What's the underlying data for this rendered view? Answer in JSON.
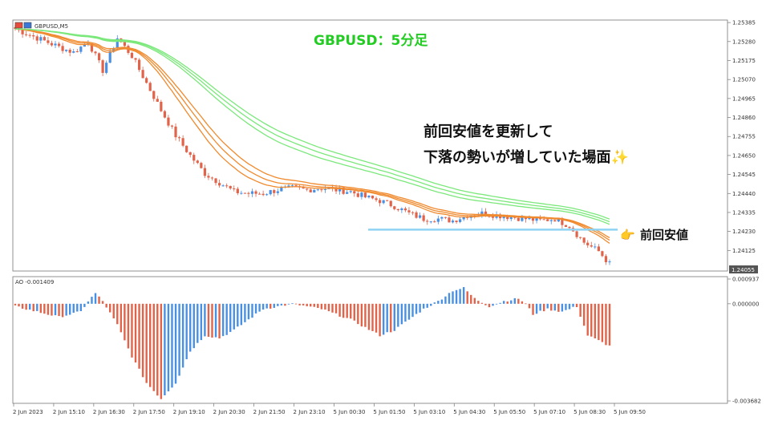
{
  "window": {
    "symbol_label": "GBPUSD,M5"
  },
  "overlay": {
    "title": "GBPUSD：5分足",
    "annotation_line1": "前回安値を更新して",
    "annotation_line2": "下落の勢いが増していた場面✨",
    "support_label": "前回安値",
    "pointer_glyph": "👉"
  },
  "colors": {
    "bull": "#4a90e2",
    "bear": "#e0634a",
    "ema_fast": "#f08a2e",
    "ema_slow": "#7be87b",
    "support_line": "#8fd3f4",
    "title": "#22cc22"
  },
  "chart_data": [
    {
      "type": "candlestick",
      "title": "GBPUSD,M5",
      "indicators": [
        "fast moving averages (orange)",
        "slow moving averages (green)"
      ],
      "y_ticks": [
        "1.25385",
        "1.25280",
        "1.25175",
        "1.25070",
        "1.24965",
        "1.24860",
        "1.24755",
        "1.24650",
        "1.24545",
        "1.24440",
        "1.24335",
        "1.24230",
        "1.24125"
      ],
      "last_price_label": "1.24055",
      "ylim": [
        1.2402,
        1.2539
      ],
      "x_ticks": [
        "2 Jun 2023",
        "2 Jun 15:10",
        "2 Jun 16:30",
        "2 Jun 17:50",
        "2 Jun 19:10",
        "2 Jun 20:30",
        "2 Jun 21:50",
        "2 Jun 23:10",
        "5 Jun 00:30",
        "5 Jun 01:50",
        "5 Jun 03:10",
        "5 Jun 04:30",
        "5 Jun 05:50",
        "5 Jun 07:10",
        "5 Jun 08:30",
        "5 Jun 09:50"
      ],
      "close_path": [
        [
          0,
          1.2535
        ],
        [
          6,
          1.253
        ],
        [
          12,
          1.2525
        ],
        [
          16,
          1.2522
        ],
        [
          20,
          1.2528
        ],
        [
          24,
          1.2512
        ],
        [
          28,
          1.253
        ],
        [
          32,
          1.252
        ],
        [
          36,
          1.2505
        ],
        [
          40,
          1.249
        ],
        [
          44,
          1.2476
        ],
        [
          48,
          1.2465
        ],
        [
          52,
          1.2455
        ],
        [
          56,
          1.245
        ],
        [
          60,
          1.2445
        ],
        [
          64,
          1.2444
        ],
        [
          68,
          1.2444
        ],
        [
          72,
          1.2446
        ],
        [
          76,
          1.2447
        ],
        [
          80,
          1.2446
        ],
        [
          84,
          1.2447
        ],
        [
          88,
          1.2446
        ],
        [
          92,
          1.2445
        ],
        [
          96,
          1.2442
        ],
        [
          100,
          1.244
        ],
        [
          104,
          1.2437
        ],
        [
          108,
          1.2433
        ],
        [
          112,
          1.243
        ],
        [
          116,
          1.243
        ],
        [
          120,
          1.2429
        ],
        [
          124,
          1.2432
        ],
        [
          128,
          1.2433
        ],
        [
          132,
          1.2432
        ],
        [
          136,
          1.2431
        ],
        [
          140,
          1.243
        ],
        [
          144,
          1.2429
        ],
        [
          148,
          1.243
        ],
        [
          152,
          1.2426
        ],
        [
          156,
          1.2417
        ],
        [
          160,
          1.2412
        ],
        [
          163,
          1.2405
        ]
      ],
      "support_level": 1.2424
    },
    {
      "type": "bar",
      "title": "AO -0.001409",
      "y_ticks": [
        "0.000937",
        "0.000000",
        "-0.003682"
      ],
      "ylim": [
        -0.003682,
        0.000937
      ],
      "colors_meaning": "blue = rising bar, red = falling bar",
      "values_path": [
        [
          0,
          -0.0001
        ],
        [
          6,
          -0.0003
        ],
        [
          12,
          -0.0005
        ],
        [
          18,
          -0.0003
        ],
        [
          20,
          0.0001
        ],
        [
          22,
          0.0004
        ],
        [
          24,
          0.0001
        ],
        [
          28,
          -0.0008
        ],
        [
          32,
          -0.002
        ],
        [
          36,
          -0.003
        ],
        [
          40,
          -0.0036
        ],
        [
          44,
          -0.003
        ],
        [
          48,
          -0.0018
        ],
        [
          52,
          -0.0012
        ],
        [
          56,
          -0.0013
        ],
        [
          60,
          -0.001
        ],
        [
          64,
          -0.0006
        ],
        [
          68,
          -0.0002
        ],
        [
          72,
          -0.0001
        ],
        [
          76,
          0.0
        ],
        [
          80,
          -0.0001
        ],
        [
          84,
          -0.0002
        ],
        [
          88,
          -0.0004
        ],
        [
          92,
          -0.0006
        ],
        [
          96,
          -0.0009
        ],
        [
          100,
          -0.0012
        ],
        [
          104,
          -0.001
        ],
        [
          108,
          -0.0006
        ],
        [
          112,
          -0.0002
        ],
        [
          116,
          0.0001
        ],
        [
          120,
          0.0005
        ],
        [
          123,
          0.0006
        ],
        [
          126,
          0.0002
        ],
        [
          130,
          -0.0001
        ],
        [
          134,
          0.0001
        ],
        [
          138,
          0.0002
        ],
        [
          140,
          0.0
        ],
        [
          142,
          -0.0004
        ],
        [
          146,
          -0.0002
        ],
        [
          150,
          -0.0003
        ],
        [
          154,
          -0.0001
        ],
        [
          157,
          -0.0012
        ],
        [
          160,
          -0.0014
        ],
        [
          163,
          -0.0016
        ]
      ]
    }
  ]
}
